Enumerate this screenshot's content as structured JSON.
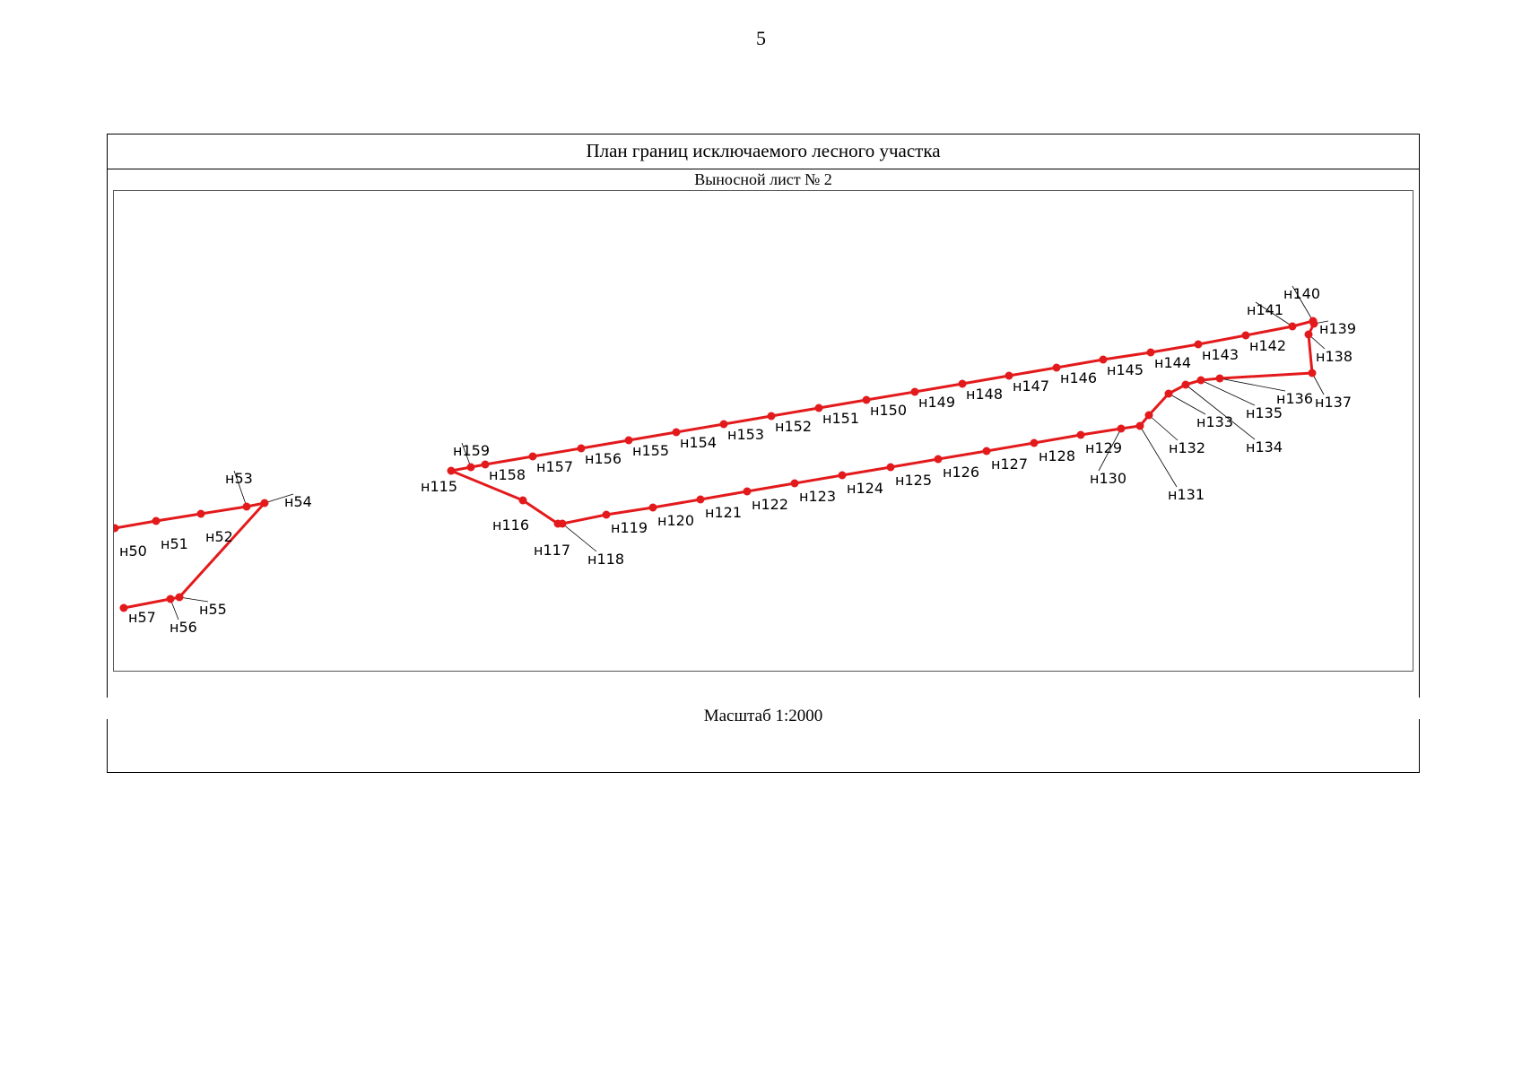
{
  "page_number": "5",
  "header": {
    "title": "План границ исключаемого лесного участка",
    "subtitle": "Выносной лист № 2"
  },
  "scale_label": "Масштаб 1:2000",
  "colors": {
    "boundary": "#e31a1c",
    "frame": "#000000"
  },
  "map": {
    "polylines": [
      {
        "name": "boundary-left-upper",
        "points": [
          "н50",
          "н51",
          "н52",
          "н53",
          "н54"
        ]
      },
      {
        "name": "boundary-left-diagonal",
        "points": [
          "н54",
          "н55"
        ]
      },
      {
        "name": "boundary-left-lower",
        "points": [
          "н55",
          "н56",
          "н57"
        ]
      },
      {
        "name": "boundary-main",
        "points": [
          "н115",
          "н116",
          "н117",
          "н118",
          "н119",
          "н120",
          "н121",
          "н122",
          "н123",
          "н124",
          "н125",
          "н126",
          "н127",
          "н128",
          "н129",
          "н130",
          "н131",
          "н132",
          "н133",
          "н134",
          "н135",
          "н136",
          "н137",
          "н138",
          "н139",
          "н140",
          "н141",
          "н142",
          "н143",
          "н144",
          "н145",
          "н146",
          "н147",
          "н148",
          "н149",
          "н150",
          "н151",
          "н152",
          "н153",
          "н154",
          "н155",
          "н156",
          "н157",
          "н158",
          "н159",
          "н115"
        ]
      }
    ],
    "points": [
      {
        "label": "н50"
      },
      {
        "label": "н51"
      },
      {
        "label": "н52"
      },
      {
        "label": "н53"
      },
      {
        "label": "н54"
      },
      {
        "label": "н55"
      },
      {
        "label": "н56"
      },
      {
        "label": "н57"
      },
      {
        "label": "н115"
      },
      {
        "label": "н116"
      },
      {
        "label": "н117"
      },
      {
        "label": "н118"
      },
      {
        "label": "н119"
      },
      {
        "label": "н120"
      },
      {
        "label": "н121"
      },
      {
        "label": "н122"
      },
      {
        "label": "н123"
      },
      {
        "label": "н124"
      },
      {
        "label": "н125"
      },
      {
        "label": "н126"
      },
      {
        "label": "н127"
      },
      {
        "label": "н128"
      },
      {
        "label": "н129"
      },
      {
        "label": "н130"
      },
      {
        "label": "н131"
      },
      {
        "label": "н132"
      },
      {
        "label": "н133"
      },
      {
        "label": "н134"
      },
      {
        "label": "н135"
      },
      {
        "label": "н136"
      },
      {
        "label": "н137"
      },
      {
        "label": "н138"
      },
      {
        "label": "н139"
      },
      {
        "label": "н140"
      },
      {
        "label": "н141"
      },
      {
        "label": "н142"
      },
      {
        "label": "н143"
      },
      {
        "label": "н144"
      },
      {
        "label": "н145"
      },
      {
        "label": "н146"
      },
      {
        "label": "н147"
      },
      {
        "label": "н148"
      },
      {
        "label": "н149"
      },
      {
        "label": "н150"
      },
      {
        "label": "н151"
      },
      {
        "label": "н152"
      },
      {
        "label": "н153"
      },
      {
        "label": "н154"
      },
      {
        "label": "н155"
      },
      {
        "label": "н156"
      },
      {
        "label": "н157"
      },
      {
        "label": "н158"
      },
      {
        "label": "н159"
      }
    ]
  }
}
